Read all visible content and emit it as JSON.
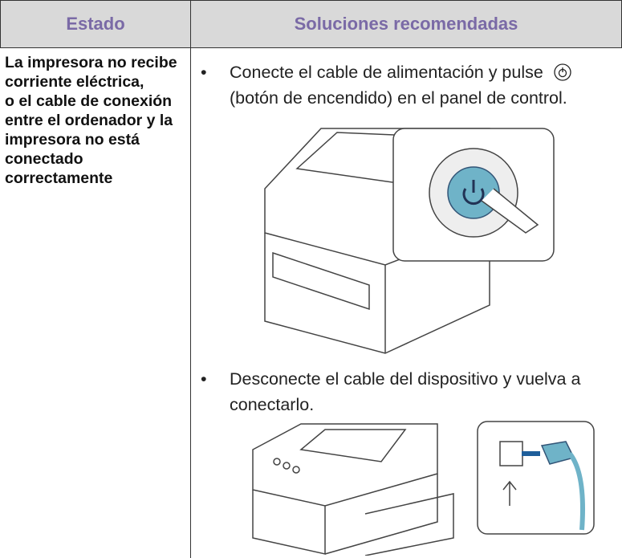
{
  "table": {
    "header": [
      "Estado",
      "Soluciones recomendadas"
    ],
    "state": [
      "La impresora no recibe corriente eléctrica,",
      "o el cable de conexión entre el ordenador y la impresora no está conectado correctamente"
    ],
    "solutions": [
      {
        "before": "Conecte el cable de alimentación y pulse",
        "after": "(botón de encendido) en el panel de control."
      },
      {
        "text": "Desconecte el cable del dispositivo y vuelva a conectarlo."
      }
    ]
  }
}
